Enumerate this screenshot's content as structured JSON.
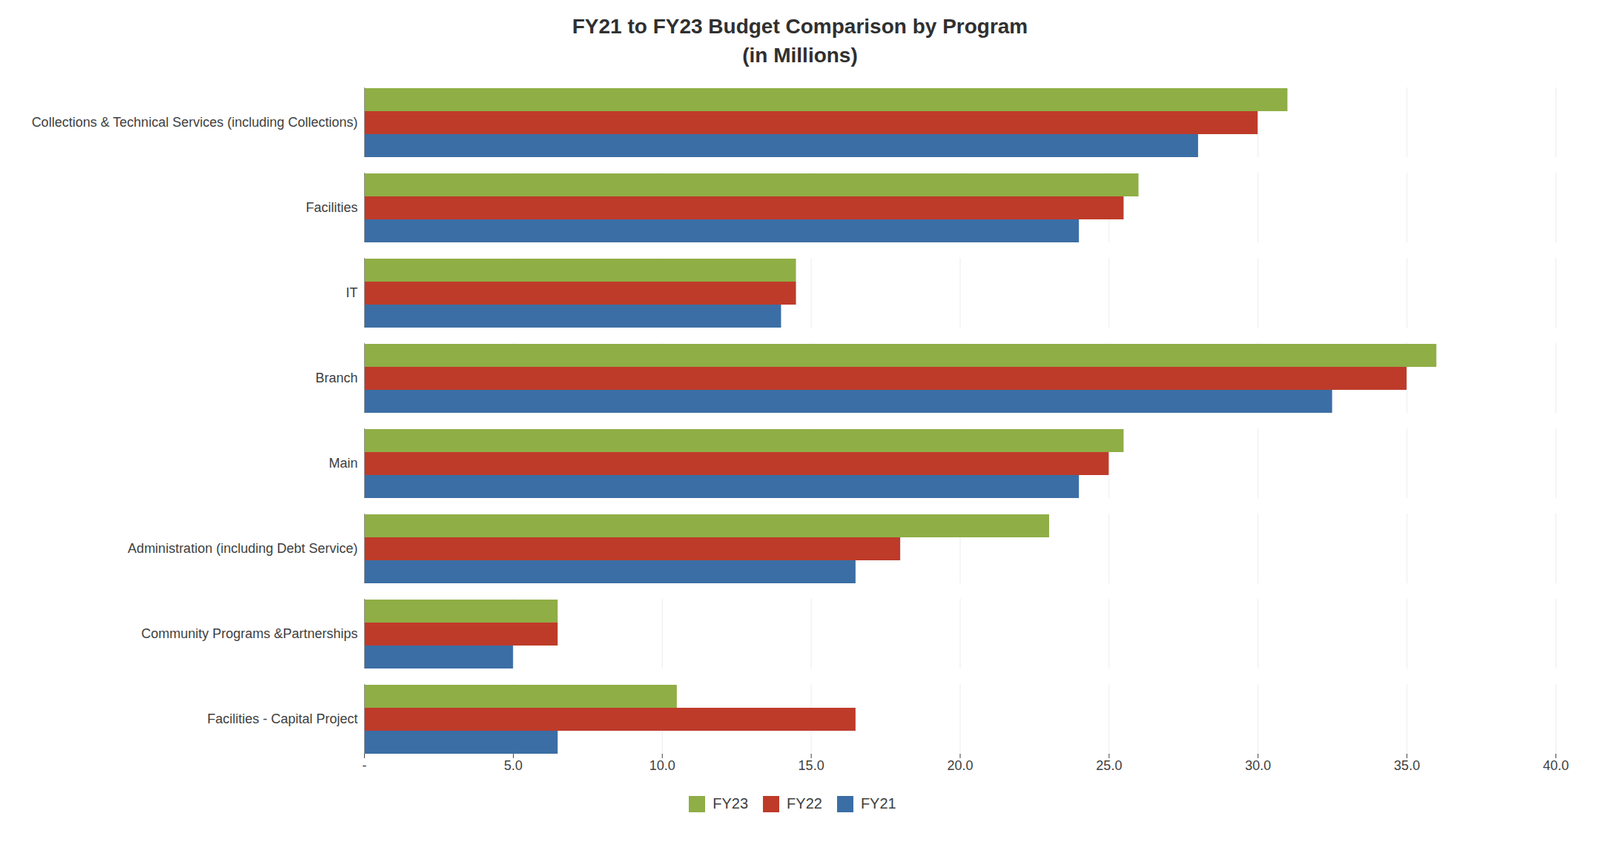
{
  "chart_data": {
    "type": "bar",
    "orientation": "horizontal",
    "title": "FY21 to FY23 Budget Comparison by Program\n(in Millions)",
    "categories": [
      "Collections & Technical Services (including Collections)",
      "Facilities",
      "IT",
      "Branch",
      "Main",
      "Administration (including Debt Service)",
      "Community Programs &Partnerships",
      "Facilities - Capital Project"
    ],
    "series": [
      {
        "name": "FY23",
        "color": "#8fae45",
        "values": [
          31.0,
          26.0,
          14.5,
          36.0,
          25.5,
          23.0,
          6.5,
          10.5
        ]
      },
      {
        "name": "FY22",
        "color": "#be3b2a",
        "values": [
          30.0,
          25.5,
          14.5,
          35.0,
          25.0,
          18.0,
          6.5,
          16.5
        ]
      },
      {
        "name": "FY21",
        "color": "#3b6ea5",
        "values": [
          28.0,
          24.0,
          14.0,
          32.5,
          24.0,
          16.5,
          5.0,
          6.5
        ]
      }
    ],
    "xlim": [
      0,
      40
    ],
    "xticks": [
      {
        "value": 0,
        "label": "-"
      },
      {
        "value": 5,
        "label": "5.0"
      },
      {
        "value": 10,
        "label": "10.0"
      },
      {
        "value": 15,
        "label": "15.0"
      },
      {
        "value": 20,
        "label": "20.0"
      },
      {
        "value": 25,
        "label": "25.0"
      },
      {
        "value": 30,
        "label": "30.0"
      },
      {
        "value": 35,
        "label": "35.0"
      },
      {
        "value": 40,
        "label": "40.0"
      }
    ],
    "grid": true,
    "legend": "bottom"
  }
}
